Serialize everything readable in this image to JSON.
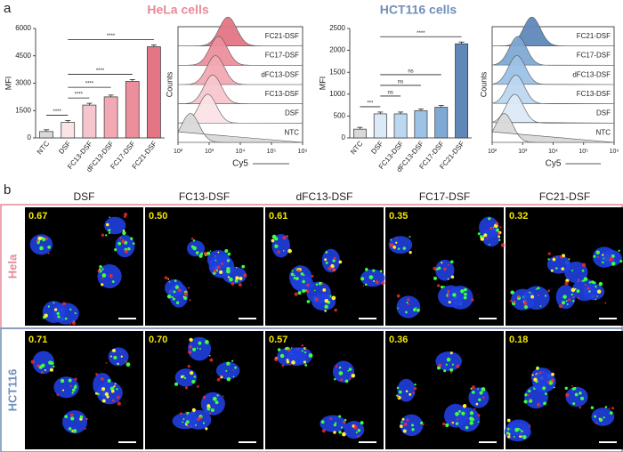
{
  "panels": [
    "a",
    "b"
  ],
  "chart_data": [
    {
      "type": "bar",
      "title": "HeLa cells",
      "title_color": "#e58a98",
      "ylabel": "MFI",
      "categories": [
        "NTC",
        "DSF",
        "FC13-DSF",
        "dFC13-DSF",
        "FC17-DSF",
        "FC21-DSF"
      ],
      "values": [
        350,
        850,
        1800,
        2250,
        3100,
        5000
      ],
      "colors": [
        "#d9d9d9",
        "#fbe3e6",
        "#f7c6cd",
        "#f2a9b3",
        "#ec8f9c",
        "#e47585"
      ],
      "ylim": [
        0,
        6000
      ],
      "yticks": [
        0,
        1500,
        3000,
        4500,
        6000
      ],
      "comparisons": [
        {
          "from": 0,
          "to": 1,
          "label": "****"
        },
        {
          "from": 1,
          "to": 2,
          "label": "****"
        },
        {
          "from": 1,
          "to": 3,
          "label": "****"
        },
        {
          "from": 1,
          "to": 4,
          "label": "****"
        },
        {
          "from": 1,
          "to": 5,
          "label": "****"
        }
      ]
    },
    {
      "type": "ridgeline",
      "ylabel": "Counts",
      "xlabel": "Cy5",
      "log_x": true,
      "xlim": [
        100,
        1000000
      ],
      "xticks": [
        {
          "value": 100,
          "label": "10²"
        },
        {
          "value": 1000,
          "label": "10³"
        },
        {
          "value": 10000,
          "label": "10⁴"
        },
        {
          "value": 100000,
          "label": "10⁵"
        },
        {
          "value": 1000000,
          "label": "10⁶"
        }
      ],
      "series": [
        {
          "name": "FC21-DSF",
          "color": "#e47585",
          "peak": 4000
        },
        {
          "name": "FC17-DSF",
          "color": "#ec8f9c",
          "peak": 2000
        },
        {
          "name": "dFC13-DSF",
          "color": "#f2a9b3",
          "peak": 1600
        },
        {
          "name": "FC13-DSF",
          "color": "#f7c6cd",
          "peak": 1300
        },
        {
          "name": "DSF",
          "color": "#fbe3e6",
          "peak": 900
        },
        {
          "name": "NTC",
          "color": "#d9d9d9",
          "peak": 250
        }
      ]
    },
    {
      "type": "bar",
      "title": "HCT116 cells",
      "title_color": "#6f8fb8",
      "ylabel": "MFI",
      "categories": [
        "NTC",
        "DSF",
        "FC13-DSF",
        "dFC13-DSF",
        "FC17-DSF",
        "FC21-DSF"
      ],
      "values": [
        200,
        550,
        550,
        620,
        700,
        2150
      ],
      "colors": [
        "#d9d9d9",
        "#dceaf7",
        "#bcd7f0",
        "#9cc2e6",
        "#7ea9d4",
        "#5f88b8"
      ],
      "ylim": [
        0,
        2500
      ],
      "yticks": [
        0,
        500,
        1000,
        1500,
        2000,
        2500
      ],
      "comparisons": [
        {
          "from": 0,
          "to": 1,
          "label": "***"
        },
        {
          "from": 1,
          "to": 2,
          "label": "ns"
        },
        {
          "from": 1,
          "to": 3,
          "label": "ns"
        },
        {
          "from": 1,
          "to": 4,
          "label": "ns"
        },
        {
          "from": 1,
          "to": 5,
          "label": "****"
        }
      ]
    },
    {
      "type": "ridgeline",
      "ylabel": "Counts",
      "xlabel": "Cy5",
      "log_x": true,
      "xlim": [
        100,
        1000000
      ],
      "xticks": [
        {
          "value": 100,
          "label": "10²"
        },
        {
          "value": 1000,
          "label": "10³"
        },
        {
          "value": 10000,
          "label": "10⁴"
        },
        {
          "value": 100000,
          "label": "10⁵"
        },
        {
          "value": 1000000,
          "label": "10⁶"
        }
      ],
      "series": [
        {
          "name": "FC21-DSF",
          "color": "#5f88b8",
          "peak": 2000
        },
        {
          "name": "FC17-DSF",
          "color": "#7ea9d4",
          "peak": 700
        },
        {
          "name": "dFC13-DSF",
          "color": "#9cc2e6",
          "peak": 650
        },
        {
          "name": "FC13-DSF",
          "color": "#bcd7f0",
          "peak": 600
        },
        {
          "name": "DSF",
          "color": "#dceaf7",
          "peak": 550
        },
        {
          "name": "NTC",
          "color": "#d9d9d9",
          "peak": 250
        }
      ]
    }
  ],
  "microscopy": {
    "columns": [
      "DSF",
      "FC13-DSF",
      "dFC13-DSF",
      "FC17-DSF",
      "FC21-DSF"
    ],
    "rows": [
      {
        "label": "Hela",
        "color": "#e58a98",
        "values": [
          "0.67",
          "0.50",
          "0.61",
          "0.35",
          "0.32"
        ]
      },
      {
        "label": "HCT116",
        "color": "#6f8fb8",
        "values": [
          "0.71",
          "0.70",
          "0.57",
          "0.36",
          "0.18"
        ]
      }
    ]
  }
}
